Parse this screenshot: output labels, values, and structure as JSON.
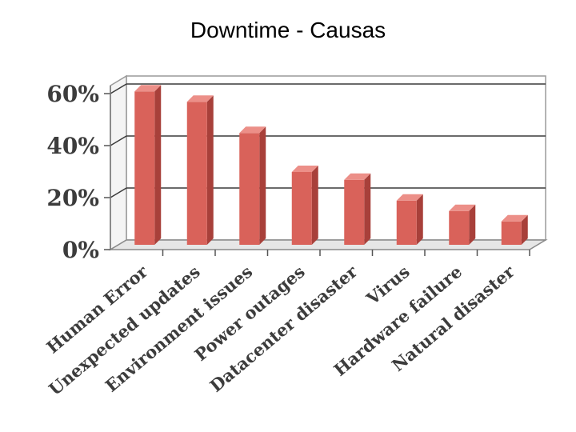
{
  "slide": {
    "title": "Downtime - Causas"
  },
  "chart_data": {
    "type": "bar",
    "title": "",
    "xlabel": "",
    "ylabel": "",
    "categories": [
      "Human Error",
      "Unexpected updates",
      "Environment issues",
      "Power outages",
      "Datacenter disaster",
      "Virus",
      "Hardware failure",
      "Natural disaster"
    ],
    "values": [
      59,
      55,
      43,
      28,
      25,
      17,
      13,
      9
    ],
    "value_format": "percent",
    "ylim": [
      0,
      60
    ],
    "yticks": [
      "0%",
      "20%",
      "40%",
      "60%"
    ],
    "grid": true,
    "legend": "none",
    "style": "3d",
    "bar_color": "#d9625a",
    "bar_shade_color": "#a8403a",
    "bar_top_color": "#ec8f88"
  }
}
